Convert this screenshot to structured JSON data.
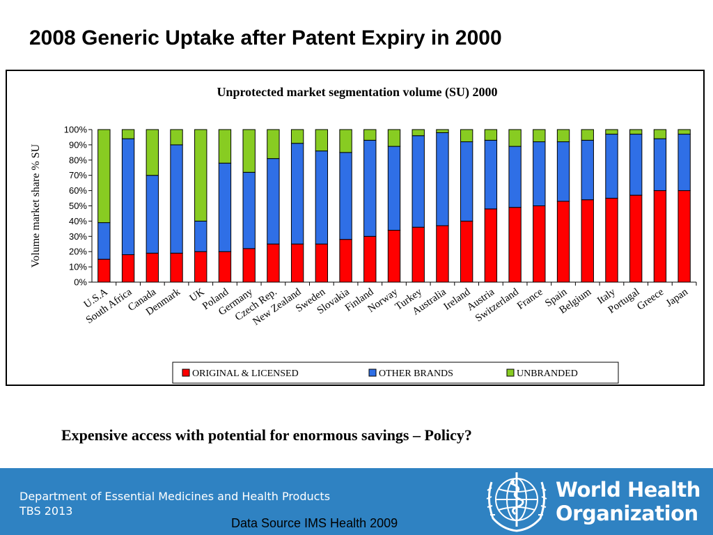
{
  "slide": {
    "title": "2008 Generic Uptake after Patent Expiry in 2000",
    "subtitle": "Expensive access with potential for enormous savings – Policy?"
  },
  "footer": {
    "department": "Department of Essential Medicines and Health Products",
    "code": "TBS 2013",
    "data_source": "Data Source IMS Health 2009",
    "org_line1": "World Health",
    "org_line2": "Organization",
    "logo_icon": "who-emblem-icon"
  },
  "colors": {
    "original": "#ff0000",
    "other": "#2f6fe6",
    "unbranded": "#88cc22",
    "footer_bg": "#2f82c2"
  },
  "chart_data": {
    "type": "bar",
    "stacked": true,
    "normalized": true,
    "title": "Unprotected market segmentation volume (SU) 2000",
    "xlabel": "",
    "ylabel": "Volume market share % SU",
    "ylim": [
      0,
      100
    ],
    "yticks": [
      "0%",
      "10%",
      "20%",
      "30%",
      "40%",
      "50%",
      "60%",
      "70%",
      "80%",
      "90%",
      "100%"
    ],
    "legend_position": "bottom-center",
    "grid": false,
    "categories": [
      "U.S.A",
      "South Africa",
      "Canada",
      "Denmark",
      "UK",
      "Poland",
      "Germany",
      "Czech Rep.",
      "New Zealand",
      "Sweden",
      "Slovakia",
      "Finland",
      "Norway",
      "Turkey",
      "Australia",
      "Ireland",
      "Austria",
      "Switzerland",
      "France",
      "Spain",
      "Belgium",
      "Italy",
      "Portugal",
      "Greece",
      "Japan"
    ],
    "series": [
      {
        "name": "ORIGINAL & LICENSED",
        "color": "#ff0000",
        "values": [
          15,
          18,
          19,
          19,
          20,
          20,
          22,
          25,
          25,
          25,
          28,
          30,
          34,
          36,
          37,
          40,
          48,
          49,
          50,
          53,
          54,
          55,
          57,
          60,
          60
        ]
      },
      {
        "name": "OTHER BRANDS",
        "color": "#2f6fe6",
        "values": [
          24,
          76,
          51,
          71,
          20,
          58,
          50,
          56,
          66,
          61,
          57,
          63,
          55,
          60,
          61,
          52,
          45,
          40,
          42,
          39,
          39,
          42,
          40,
          34,
          37
        ]
      },
      {
        "name": "UNBRANDED",
        "color": "#88cc22",
        "values": [
          61,
          6,
          30,
          10,
          60,
          22,
          28,
          19,
          9,
          14,
          15,
          7,
          11,
          4,
          2,
          8,
          7,
          11,
          8,
          8,
          7,
          3,
          3,
          6,
          3
        ]
      }
    ]
  }
}
